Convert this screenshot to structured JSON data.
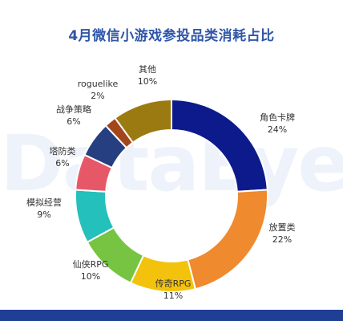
{
  "watermark": "DataEye",
  "chart_data": {
    "type": "pie",
    "title": "4月微信小游戏参投品类消耗占比",
    "donut": true,
    "slices": [
      {
        "label": "角色卡牌",
        "value": 24,
        "value_label": "24%",
        "color": "#0d1a8c"
      },
      {
        "label": "放置类",
        "value": 22,
        "value_label": "22%",
        "color": "#ef8a2e"
      },
      {
        "label": "传奇RPG",
        "value": 11,
        "value_label": "11%",
        "color": "#f3c20d"
      },
      {
        "label": "仙侠RPG",
        "value": 10,
        "value_label": "10%",
        "color": "#76c442"
      },
      {
        "label": "模拟经营",
        "value": 9,
        "value_label": "9%",
        "color": "#24c0bb"
      },
      {
        "label": "塔防类",
        "value": 6,
        "value_label": "6%",
        "color": "#e65868"
      },
      {
        "label": "战争策略",
        "value": 6,
        "value_label": "6%",
        "color": "#253f80"
      },
      {
        "label": "roguelike",
        "value": 2,
        "value_label": "2%",
        "color": "#a3461c"
      },
      {
        "label": "其他",
        "value": 10,
        "value_label": "10%",
        "color": "#9c7a12"
      }
    ]
  }
}
